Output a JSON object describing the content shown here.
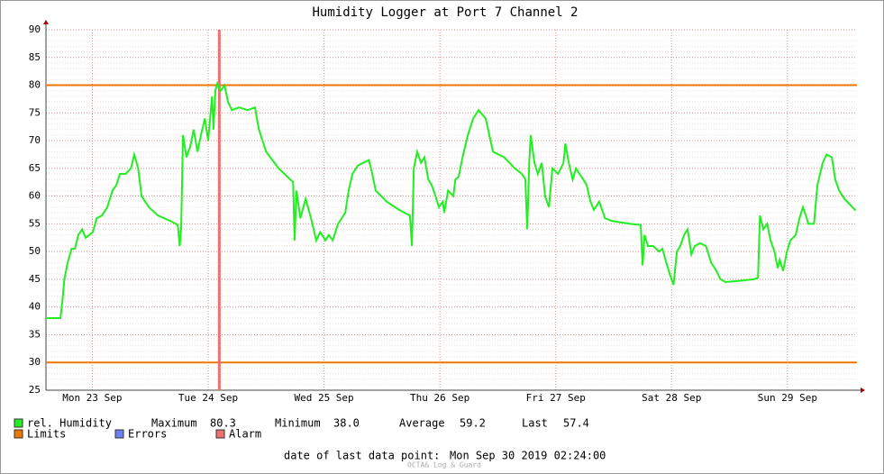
{
  "chart_data": {
    "type": "line",
    "title": "Humidity Logger at Port 7 Channel 2",
    "x": [
      2.4,
      5.4,
      5.8,
      6.2,
      6.9,
      7.7,
      8.4,
      9.1,
      9.9,
      10.6,
      11.4,
      12.1,
      12.9,
      14.0,
      15.1,
      16.2,
      17.0,
      17.7,
      18.9,
      20.0,
      20.7,
      21.5,
      22.2,
      23.7,
      25.6,
      28.2,
      29.7,
      30.1,
      30.4,
      30.8,
      31.5,
      32.3,
      33.0,
      33.8,
      34.5,
      35.3,
      36.0,
      36.8,
      37.1,
      37.5,
      37.9,
      38.6,
      39.4,
      40.1,
      40.9,
      42.4,
      44.2,
      45.7,
      46.5,
      48.0,
      50.6,
      53.6,
      53.9,
      54.3,
      55.1,
      56.2,
      57.3,
      58.4,
      59.2,
      60.3,
      61.0,
      61.8,
      62.9,
      64.4,
      65.1,
      65.9,
      67.0,
      68.1,
      69.3,
      70.0,
      70.7,
      73.0,
      75.6,
      77.8,
      78.2,
      78.6,
      79.3,
      80.1,
      80.8,
      81.6,
      82.3,
      83.1,
      83.8,
      84.6,
      84.9,
      85.7,
      86.8,
      87.2,
      87.9,
      88.7,
      89.8,
      90.9,
      92.0,
      93.5,
      95.0,
      97.3,
      99.5,
      101.0,
      101.7,
      102.1,
      102.5,
      102.8,
      103.6,
      104.3,
      105.1,
      105.8,
      106.6,
      107.3,
      108.5,
      109.6,
      110.0,
      110.7,
      111.5,
      112.2,
      112.9,
      113.7,
      114.4,
      115.2,
      115.9,
      117.0,
      118.2,
      119.7,
      123.4,
      125.6,
      126.0,
      126.4,
      127.1,
      128.2,
      129.4,
      130.1,
      130.9,
      131.6,
      132.4,
      133.1,
      133.8,
      134.6,
      135.3,
      136.1,
      136.8,
      137.9,
      139.1,
      140.2,
      141.3,
      142.1,
      143.2,
      145.8,
      149.1,
      149.9,
      150.3,
      151.0,
      151.8,
      152.5,
      153.3,
      154.0,
      154.4,
      155.1,
      155.9,
      156.6,
      157.7,
      158.5,
      159.2,
      160.0,
      160.3,
      161.5,
      162.2,
      163.3,
      164.1,
      165.2,
      165.9,
      166.7,
      167.8,
      168.9,
      170.1
    ],
    "series": [
      {
        "name": "rel. Humidity",
        "color": "#22ee22",
        "values": [
          38,
          38,
          41,
          45,
          48,
          50.5,
          50.5,
          53,
          54,
          52.5,
          53,
          53.5,
          56,
          56.5,
          58,
          61,
          62,
          64,
          64,
          65,
          67.5,
          65,
          60,
          58,
          56.5,
          55.5,
          54.8,
          51,
          54,
          71,
          67,
          69,
          72,
          68,
          71,
          74,
          70,
          78,
          72,
          79,
          80.3,
          79,
          80,
          77,
          75.5,
          76,
          75.5,
          76,
          72,
          68,
          65,
          62.5,
          52,
          61,
          56,
          59.5,
          56,
          52,
          53.5,
          52,
          53,
          52,
          55,
          57,
          61,
          64,
          65.5,
          66,
          66.5,
          64,
          61,
          59,
          57.5,
          56.5,
          51,
          65,
          68,
          66,
          67,
          63,
          62,
          60,
          58,
          59,
          57,
          61,
          60,
          63,
          63.5,
          67,
          71,
          74,
          75.5,
          74,
          68,
          67,
          65,
          64,
          63,
          54,
          66,
          71,
          66,
          64,
          66,
          60,
          58,
          65,
          64,
          66,
          69.5,
          66,
          63,
          65,
          64,
          63,
          62,
          59,
          57.5,
          59,
          56,
          55.5,
          55,
          54.8,
          47.5,
          53,
          51,
          51,
          50,
          50.5,
          48,
          46,
          44,
          50,
          51,
          53,
          54,
          49.5,
          51,
          51.5,
          51,
          48,
          46.5,
          45,
          44.5,
          44.7,
          45,
          45.3,
          56.5,
          54,
          55,
          52,
          50,
          47,
          48.5,
          46.5,
          50,
          52,
          53,
          56,
          58,
          56,
          55,
          55,
          62,
          66,
          67.5,
          67,
          63,
          61,
          59.5,
          58.5,
          57.4
        ]
      }
    ],
    "xlim": [
      2.4,
      170.4
    ],
    "ylim": [
      25,
      90
    ],
    "yticks": [
      25,
      30,
      35,
      40,
      45,
      50,
      55,
      60,
      65,
      70,
      75,
      80,
      85,
      90
    ],
    "xticks": [
      {
        "value": 12,
        "label": "Mon 23 Sep"
      },
      {
        "value": 36,
        "label": "Tue 24 Sep"
      },
      {
        "value": 60,
        "label": "Wed 25 Sep"
      },
      {
        "value": 84,
        "label": "Thu 26 Sep"
      },
      {
        "value": 108,
        "label": "Fri 27 Sep"
      },
      {
        "value": 132,
        "label": "Sat 28 Sep"
      },
      {
        "value": 156,
        "label": "Sun 29 Sep"
      }
    ],
    "grid": true,
    "limits": {
      "name": "Limits",
      "color": "#ee7700",
      "values": [
        30,
        80
      ]
    },
    "errors": {
      "name": "Errors",
      "color": "#7080f0"
    },
    "alarm": {
      "name": "Alarm",
      "color": "#f07070",
      "x": 38.3
    },
    "stats": [
      {
        "label": "Maximum",
        "value": "80.3"
      },
      {
        "label": "Minimum",
        "value": "38.0"
      },
      {
        "label": "Average",
        "value": "59.2"
      },
      {
        "label": "Last",
        "value": "57.4"
      }
    ],
    "footer": {
      "label": "date of last data point:",
      "value": "Mon Sep 30 2019 02:24:00"
    },
    "watermark": "OCTA& Log & Guard"
  }
}
